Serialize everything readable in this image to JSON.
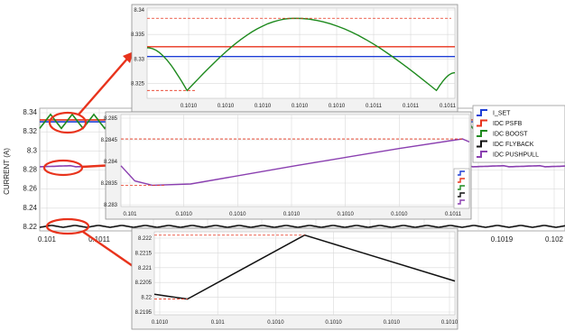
{
  "colors": {
    "i_set": "#1f3fd6",
    "psfb": "#e8331c",
    "boost": "#1e8a1e",
    "flyback": "#111111",
    "pushpull": "#8a3fb0",
    "callout": "#e8331c",
    "grid": "#d9d9d9"
  },
  "main": {
    "ylabel": "CURRENT (A)",
    "yticks": [
      "8.34",
      "8.32",
      "8.3",
      "8.28",
      "8.26",
      "8.24",
      "8.22"
    ],
    "xticks": [
      "0.101",
      "0.1011",
      "0.1019",
      "0.102"
    ],
    "legend": [
      "I_SET",
      "IDC PSFB",
      "IDC BOOST",
      "IDC FLYBACK",
      "IDC PUSHPULL"
    ]
  },
  "zoom_top": {
    "yticks": [
      "8.34",
      "8.335",
      "8.33",
      "8.325"
    ],
    "xticks": [
      "0.1010",
      "0.1010",
      "0.1010",
      "0.1010",
      "0.1010",
      "0.1011",
      "0.1011",
      "0.1011"
    ]
  },
  "zoom_mid": {
    "yticks": [
      "8.285",
      "8.2845",
      "8.284",
      "8.2835",
      "8.283"
    ],
    "xticks": [
      "0.101",
      "0.1010",
      "0.1010",
      "0.1010",
      "0.1010",
      "0.1010",
      "0.1011"
    ]
  },
  "zoom_bottom": {
    "yticks": [
      "8.222",
      "8.2215",
      "8.221",
      "8.2205",
      "8.22",
      "8.2195"
    ],
    "xticks": [
      "0.1010",
      "0.101",
      "0.1010",
      "0.1010",
      "0.1010",
      "0.1010"
    ]
  },
  "chart_data": [
    {
      "type": "line",
      "ylabel": "CURRENT (A)",
      "ylim": [
        8.22,
        8.34
      ],
      "series": [
        {
          "name": "I_SET",
          "x": [
            0.101,
            0.102
          ],
          "y": [
            8.3305,
            8.3305
          ]
        },
        {
          "name": "IDC PSFB",
          "x": [
            0.101,
            0.102
          ],
          "y": [
            8.3325,
            8.3325
          ]
        },
        {
          "name": "IDC BOOST",
          "x": [
            0.101,
            0.102
          ],
          "y_range": [
            8.3236,
            8.3383
          ]
        },
        {
          "name": "IDC FLYBACK",
          "x": [
            0.101,
            0.102
          ],
          "y_range": [
            8.2199,
            8.2221
          ]
        },
        {
          "name": "IDC PUSHPULL",
          "x": [
            0.101,
            0.102
          ],
          "y_range": [
            8.2834,
            8.2845
          ]
        }
      ],
      "grid": true,
      "legend_position": "right"
    },
    {
      "type": "line",
      "ylim": [
        8.322,
        8.34
      ],
      "series": [
        {
          "name": "I_SET",
          "x": [
            0,
            1
          ],
          "y": [
            8.3305,
            8.3305
          ]
        },
        {
          "name": "IDC PSFB",
          "x": [
            0,
            1
          ],
          "y": [
            8.3325,
            8.3325
          ]
        },
        {
          "name": "IDC BOOST",
          "x": [
            0,
            0.13,
            0.48,
            0.94,
            1
          ],
          "y": [
            8.3323,
            8.3236,
            8.3383,
            8.3236,
            8.3272
          ]
        }
      ],
      "grid": true
    },
    {
      "type": "line",
      "ylim": [
        8.283,
        8.285
      ],
      "series": [
        {
          "name": "IDC PUSHPULL",
          "x": [
            0,
            0.04,
            0.09,
            0.2,
            0.5,
            0.8,
            0.98,
            1
          ],
          "y": [
            8.2839,
            8.28355,
            8.28345,
            8.28348,
            8.2839,
            8.2843,
            8.28452,
            8.28445
          ]
        }
      ],
      "grid": true
    },
    {
      "type": "line",
      "ylim": [
        8.2195,
        8.2222
      ],
      "series": [
        {
          "name": "IDC FLYBACK",
          "x": [
            0,
            0.11,
            0.5,
            1
          ],
          "y": [
            8.2201,
            8.21994,
            8.2221,
            8.22055
          ]
        }
      ],
      "grid": true
    }
  ]
}
